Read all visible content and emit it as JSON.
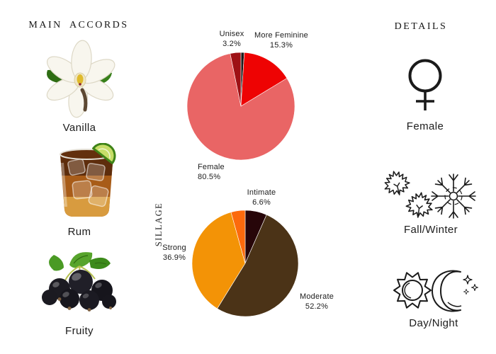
{
  "titles": {
    "main_accords": "MAIN ACCORDS",
    "details": "DETAILS"
  },
  "accords": [
    {
      "name": "Vanilla",
      "image": "vanilla-flower-photo"
    },
    {
      "name": "Rum",
      "image": "rum-cocktail-glass-photo"
    },
    {
      "name": "Fruity",
      "image": "blackcurrant-berries-photo"
    }
  ],
  "details": [
    {
      "name": "Female",
      "icon": "female-gender-icon"
    },
    {
      "name": "Fall/Winter",
      "icon": "maple-leaves-snowflake-icon"
    },
    {
      "name": "Day/Night",
      "icon": "sun-moon-icon"
    }
  ],
  "chart_data": [
    {
      "type": "pie",
      "name": "gender-votes",
      "start_angle_deg": 0,
      "direction": "clockwise",
      "legend_position": "outside-labels",
      "slices": [
        {
          "label": "",
          "pct_label": "",
          "value": 1.0,
          "color": "#1a1a1a"
        },
        {
          "label": "More Feminine",
          "pct_label": "15.3%",
          "value": 15.3,
          "color": "#ee0303"
        },
        {
          "label": "Female",
          "pct_label": "80.5%",
          "value": 80.5,
          "color": "#e96565"
        },
        {
          "label": "Unisex",
          "pct_label": "3.2%",
          "value": 3.2,
          "color": "#9e1115"
        }
      ]
    },
    {
      "type": "pie",
      "name": "sillage-votes",
      "axis_label": "SILLAGE",
      "start_angle_deg": 0,
      "direction": "clockwise",
      "legend_position": "outside-labels",
      "slices": [
        {
          "label": "Intimate",
          "pct_label": "6.6%",
          "value": 6.6,
          "color": "#270609"
        },
        {
          "label": "Moderate",
          "pct_label": "52.2%",
          "value": 52.2,
          "color": "#4b3317"
        },
        {
          "label": "Strong",
          "pct_label": "36.9%",
          "value": 36.9,
          "color": "#f39306"
        },
        {
          "label": "",
          "pct_label": "",
          "value": 4.3,
          "color": "#fc6a0c"
        }
      ]
    }
  ]
}
